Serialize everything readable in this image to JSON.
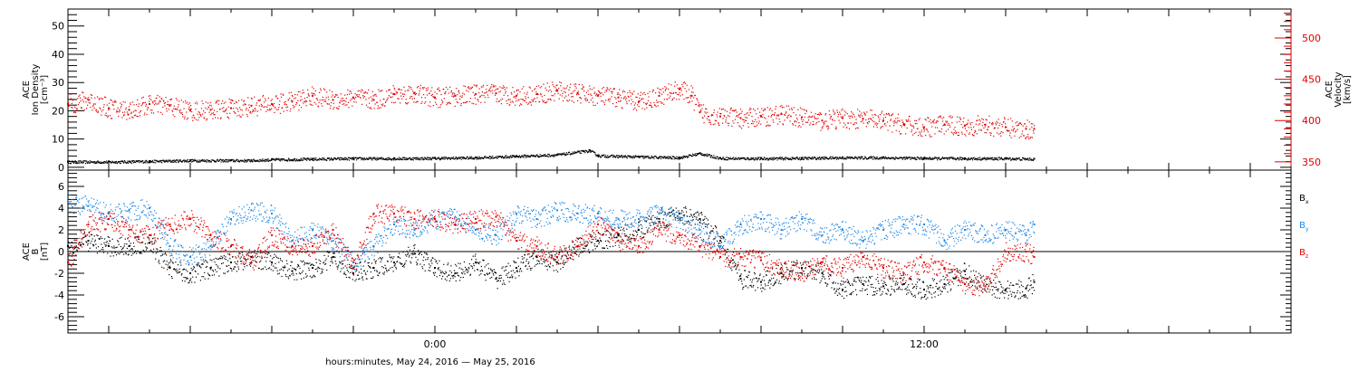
{
  "chart_data": [
    {
      "type": "scatter",
      "panel": "top",
      "xlabel": "hours:minutes, May 24, 2016 — May 25, 2016",
      "x_unit": "hours relative to 2016-05-25 00:00",
      "xlim": [
        -9,
        21
      ],
      "x_ticks": [
        {
          "x": 0,
          "label": "0:00"
        },
        {
          "x": 12,
          "label": "12:00"
        }
      ],
      "left_axis": {
        "label_lines": [
          "ACE",
          "Ion Density",
          "[cm⁻³]"
        ],
        "ylim": [
          -1,
          56
        ],
        "ticks": [
          0,
          10,
          20,
          30,
          40,
          50
        ],
        "color": "#000000"
      },
      "right_axis": {
        "label_lines": [
          "ACE",
          "Velocity",
          "[km/s]"
        ],
        "ylim": [
          340,
          535
        ],
        "ticks": [
          350,
          400,
          450,
          500
        ],
        "color": "#e00000"
      },
      "grid": false,
      "series": [
        {
          "axis": "left",
          "color": "#000000",
          "x": [
            -9.0,
            -8.0,
            -7.0,
            -6.0,
            -5.0,
            -4.5,
            -4.0,
            -3.0,
            -2.0,
            -1.0,
            0.0,
            1.0,
            2.0,
            3.0,
            3.8,
            4.0,
            5.0,
            6.0,
            6.5,
            7.0,
            8.0,
            9.0,
            10.0,
            11.0,
            12.0,
            13.0,
            14.0,
            14.7
          ],
          "y": [
            2.0,
            2.0,
            2.2,
            2.5,
            2.5,
            2.5,
            2.8,
            3.0,
            3.2,
            3.2,
            3.3,
            3.5,
            4.0,
            4.5,
            6.0,
            4.2,
            3.8,
            3.5,
            5.0,
            3.3,
            3.2,
            3.3,
            3.5,
            3.5,
            3.3,
            3.2,
            3.2,
            3.0
          ]
        },
        {
          "axis": "right",
          "color": "#e00000",
          "x": [
            -9.0,
            -8.5,
            -8.0,
            -7.5,
            -7.0,
            -6.5,
            -6.0,
            -5.5,
            -5.0,
            -4.5,
            -4.0,
            -3.5,
            -3.0,
            -2.5,
            -2.0,
            -1.5,
            -1.0,
            -0.5,
            0.0,
            0.5,
            1.0,
            1.5,
            2.0,
            2.5,
            3.0,
            3.5,
            4.0,
            4.5,
            5.0,
            5.5,
            6.0,
            6.3,
            6.5,
            7.0,
            7.5,
            8.0,
            8.5,
            9.0,
            9.5,
            10.0,
            10.5,
            11.0,
            11.5,
            12.0,
            12.5,
            13.0,
            13.5,
            14.0,
            14.5,
            14.7
          ],
          "y": [
            420,
            425,
            415,
            413,
            420,
            418,
            412,
            413,
            415,
            418,
            420,
            423,
            430,
            425,
            428,
            425,
            432,
            433,
            428,
            430,
            432,
            433,
            430,
            432,
            436,
            433,
            430,
            428,
            423,
            430,
            438,
            430,
            410,
            405,
            403,
            405,
            408,
            404,
            400,
            403,
            402,
            400,
            395,
            392,
            395,
            394,
            395,
            392,
            390,
            390
          ]
        }
      ]
    },
    {
      "type": "scatter",
      "panel": "bottom",
      "xlabel": "hours:minutes, May 24, 2016 — May 25, 2016",
      "x_unit": "hours relative to 2016-05-25 00:00",
      "xlim": [
        -9,
        21
      ],
      "x_ticks": [
        {
          "x": 0,
          "label": "0:00"
        },
        {
          "x": 12,
          "label": "12:00"
        }
      ],
      "left_axis": {
        "label_lines": [
          "ACE",
          "B",
          "[nT]"
        ],
        "ylim": [
          -7.5,
          7.5
        ],
        "ticks": [
          -6,
          -4,
          -2,
          0,
          2,
          4,
          6
        ],
        "color": "#000000"
      },
      "zero_line": true,
      "grid": false,
      "series": [
        {
          "name": "B",
          "subscript": "x",
          "color": "#000000",
          "x": [
            -9.0,
            -8.5,
            -8.0,
            -7.5,
            -7.0,
            -6.5,
            -6.0,
            -5.5,
            -5.0,
            -4.5,
            -4.0,
            -3.5,
            -3.0,
            -2.5,
            -2.0,
            -1.5,
            -1.0,
            -0.5,
            0.0,
            0.5,
            1.0,
            1.5,
            2.0,
            2.5,
            3.0,
            3.5,
            4.0,
            4.5,
            5.0,
            5.5,
            6.0,
            6.5,
            7.0,
            7.5,
            8.0,
            8.5,
            9.0,
            9.5,
            10.0,
            10.5,
            11.0,
            11.5,
            12.0,
            12.5,
            13.0,
            13.5,
            14.0,
            14.5,
            14.7
          ],
          "y": [
            0.5,
            1.0,
            0.5,
            0.5,
            0.8,
            -1.5,
            -2.0,
            -1.5,
            -1.0,
            -0.5,
            -1.0,
            -1.8,
            -1.5,
            -0.5,
            -2.0,
            -1.5,
            -1.0,
            -0.2,
            -1.5,
            -2.0,
            -1.0,
            -2.5,
            -1.5,
            -0.5,
            -1.0,
            0.5,
            1.0,
            1.5,
            2.0,
            3.0,
            3.5,
            3.0,
            1.0,
            -2.5,
            -2.8,
            -2.0,
            -1.5,
            -2.0,
            -3.5,
            -3.0,
            -3.2,
            -3.0,
            -3.5,
            -3.0,
            -1.8,
            -3.2,
            -3.5,
            -3.4,
            -2.8
          ]
        },
        {
          "name": "B",
          "subscript": "y",
          "color": "#1e88e5",
          "x": [
            -9.0,
            -8.5,
            -8.0,
            -7.5,
            -7.0,
            -6.5,
            -6.0,
            -5.5,
            -5.0,
            -4.5,
            -4.0,
            -3.5,
            -3.0,
            -2.5,
            -2.0,
            -1.5,
            -1.0,
            -0.5,
            0.0,
            0.5,
            1.0,
            1.5,
            2.0,
            2.5,
            3.0,
            3.5,
            4.0,
            4.5,
            5.0,
            5.5,
            6.0,
            6.5,
            7.0,
            7.5,
            8.0,
            8.5,
            9.0,
            9.5,
            10.0,
            10.5,
            11.0,
            11.5,
            12.0,
            12.5,
            13.0,
            13.5,
            14.0,
            14.5,
            14.7
          ],
          "y": [
            4.5,
            4.2,
            3.5,
            3.8,
            4.0,
            0.5,
            -0.5,
            0.5,
            3.0,
            3.8,
            3.5,
            1.0,
            2.0,
            1.0,
            -1.0,
            0.5,
            2.5,
            2.0,
            3.0,
            3.2,
            2.0,
            1.5,
            3.5,
            3.0,
            3.8,
            3.5,
            3.5,
            3.0,
            3.0,
            3.5,
            3.0,
            2.0,
            0.5,
            2.5,
            3.0,
            2.0,
            3.0,
            1.5,
            2.0,
            1.0,
            2.0,
            2.5,
            2.5,
            1.0,
            2.0,
            1.5,
            2.0,
            1.5,
            2.5
          ]
        },
        {
          "name": "B",
          "subscript": "z",
          "color": "#e00000",
          "x": [
            -9.0,
            -8.5,
            -8.0,
            -7.5,
            -7.0,
            -6.5,
            -6.0,
            -5.5,
            -5.0,
            -4.5,
            -4.0,
            -3.5,
            -3.0,
            -2.5,
            -2.0,
            -1.5,
            -1.0,
            -0.5,
            0.0,
            0.5,
            1.0,
            1.5,
            2.0,
            2.5,
            3.0,
            3.5,
            4.0,
            4.5,
            5.0,
            5.5,
            6.0,
            6.5,
            7.0,
            7.5,
            8.0,
            8.5,
            9.0,
            9.5,
            10.0,
            10.5,
            11.0,
            11.5,
            12.0,
            12.5,
            13.0,
            13.5,
            14.0,
            14.5,
            14.7
          ],
          "y": [
            -1.0,
            2.5,
            3.0,
            2.0,
            1.5,
            2.5,
            3.0,
            1.5,
            0.5,
            -1.0,
            1.5,
            0.5,
            0.5,
            2.0,
            -1.5,
            3.5,
            3.5,
            3.0,
            3.0,
            2.5,
            3.0,
            3.2,
            1.0,
            0.5,
            -0.5,
            0.5,
            2.5,
            1.0,
            0.5,
            2.0,
            1.5,
            0.5,
            -0.5,
            -0.5,
            -0.8,
            -1.5,
            -2.0,
            -1.0,
            -1.5,
            -0.5,
            -1.5,
            -2.0,
            -1.0,
            -1.5,
            -3.0,
            -3.2,
            0.0,
            0.0,
            -0.5
          ]
        }
      ]
    }
  ]
}
